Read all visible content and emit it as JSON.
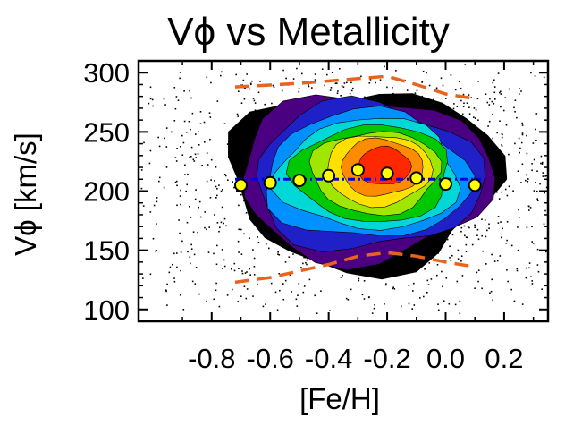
{
  "chart_data": {
    "type": "scatter",
    "title": "Vϕ vs Metallicity",
    "xlabel": "[Fe/H]",
    "ylabel": "Vϕ  [km/s]",
    "xlim": [
      -1.05,
      0.35
    ],
    "ylim": [
      90,
      310
    ],
    "x_ticks": [
      "-0.8",
      "-0.6",
      "-0.4",
      "-0.2",
      "0.0",
      "0.2"
    ],
    "y_ticks": [
      "100",
      "150",
      "200",
      "250",
      "300"
    ],
    "x_tick_values": [
      -0.8,
      -0.6,
      -0.4,
      -0.2,
      0.0,
      0.2
    ],
    "y_tick_values": [
      100,
      150,
      200,
      250,
      300
    ],
    "mean_points": {
      "x": [
        -0.7,
        -0.6,
        -0.5,
        -0.4,
        -0.3,
        -0.2,
        -0.1,
        0.0,
        0.1
      ],
      "y": [
        205,
        207,
        209,
        213,
        218,
        215,
        211,
        206,
        205
      ],
      "marker_color": "#ffff00"
    },
    "mean_fit_line": {
      "x": [
        -0.72,
        0.12
      ],
      "y": [
        210,
        210
      ],
      "color": "#0000dd",
      "style": "dash-dot"
    },
    "envelope_upper": {
      "x": [
        -0.72,
        -0.5,
        -0.3,
        -0.2,
        -0.1,
        0.0,
        0.1
      ],
      "y": [
        288,
        291,
        295,
        297,
        290,
        282,
        278
      ],
      "color": "#e8641e",
      "style": "dashed"
    },
    "envelope_lower": {
      "x": [
        -0.72,
        -0.6,
        -0.4,
        -0.3,
        -0.2,
        -0.1,
        0.0,
        0.1
      ],
      "y": [
        123,
        127,
        138,
        145,
        148,
        145,
        140,
        136
      ],
      "color": "#e8641e",
      "style": "dashed"
    },
    "density_levels": [
      "#000000",
      "#4b0082",
      "#2020c8",
      "#0090ff",
      "#00d7d7",
      "#00c800",
      "#a0e600",
      "#ffe000",
      "#ff8c00",
      "#ff2800"
    ],
    "background_points": "scattered stars outside contours"
  }
}
